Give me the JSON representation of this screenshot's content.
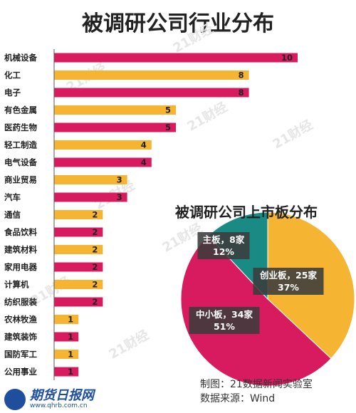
{
  "title": "被调研公司行业分布",
  "colors": {
    "magenta": "#d81b5e",
    "gold": "#f5b533",
    "teal": "#1a8a85",
    "label_bg": "#3b3b3b"
  },
  "chart_data": [
    {
      "type": "bar",
      "orientation": "horizontal",
      "title": "被调研公司行业分布",
      "categories": [
        "机械设备",
        "化工",
        "电子",
        "有色金属",
        "医药生物",
        "轻工制造",
        "电气设备",
        "商业贸易",
        "汽车",
        "通信",
        "食品饮料",
        "建筑材料",
        "家用电器",
        "计算机",
        "纺织服装",
        "农林牧渔",
        "建筑装饰",
        "国防军工",
        "公用事业"
      ],
      "values": [
        10,
        8,
        8,
        5,
        5,
        4,
        4,
        3,
        3,
        2,
        2,
        2,
        2,
        2,
        2,
        1,
        1,
        1,
        1
      ],
      "bar_colors": [
        "magenta",
        "gold",
        "magenta",
        "gold",
        "magenta",
        "gold",
        "magenta",
        "gold",
        "magenta",
        "gold",
        "magenta",
        "gold",
        "magenta",
        "gold",
        "magenta",
        "gold",
        "magenta",
        "gold",
        "magenta"
      ],
      "xlim": [
        0,
        10
      ]
    },
    {
      "type": "pie",
      "title": "被调研公司上市板分布",
      "slices": [
        {
          "label": "创业板",
          "count_label": "25家",
          "value": 37,
          "percent_label": "37%",
          "color": "gold"
        },
        {
          "label": "中小板",
          "count_label": "34家",
          "value": 51,
          "percent_label": "51%",
          "color": "magenta"
        },
        {
          "label": "主板",
          "count_label": "8家",
          "value": 12,
          "percent_label": "12%",
          "color": "teal"
        }
      ]
    }
  ],
  "credits": {
    "line1": "制图：21数据新闻实验室",
    "line2": "数据来源：Wind"
  },
  "watermark_text": "21财经",
  "logo": {
    "mark": "qhrb",
    "name": "期货日报网",
    "url": "www.qhrb.com.cn"
  }
}
